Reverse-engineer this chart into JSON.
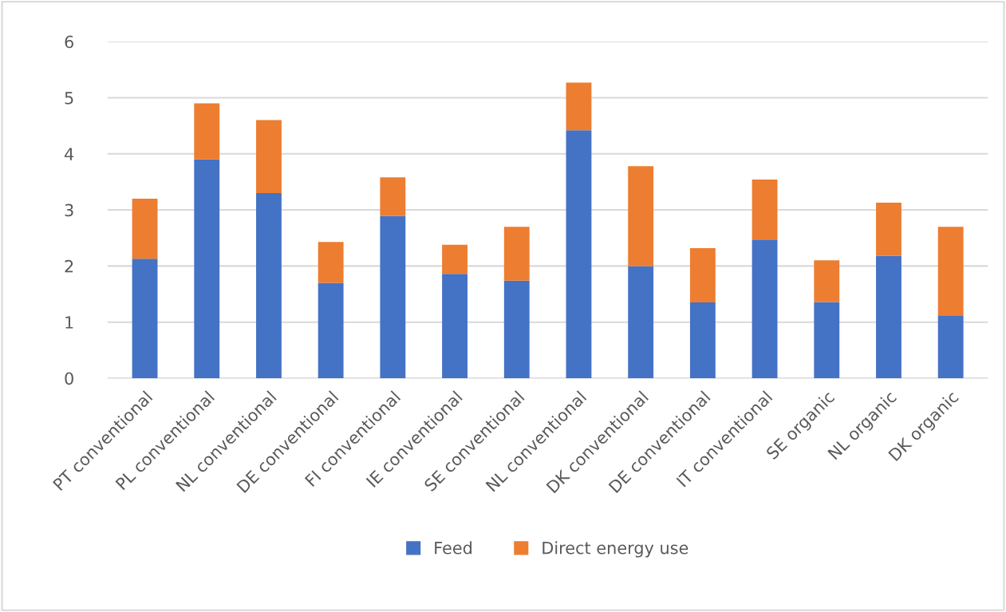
{
  "chart_data": {
    "type": "bar",
    "stacked": true,
    "categories": [
      "PT conventional",
      "PL conventional",
      "NL conventional",
      "DE conventional",
      "FI conventional",
      "IE conventional",
      "SE conventional",
      "NL conventional",
      "DK conventional",
      "DE conventional",
      "IT conventional",
      "SE organic",
      "NL organic",
      "DK organic"
    ],
    "series": [
      {
        "name": "Feed",
        "color": "#4472c4",
        "values": [
          2.13,
          3.9,
          3.3,
          1.7,
          2.89,
          1.86,
          1.74,
          4.42,
          2.0,
          1.35,
          2.47,
          1.36,
          2.18,
          1.12
        ]
      },
      {
        "name": "Direct energy use",
        "color": "#ed7d31",
        "values": [
          1.07,
          1.0,
          1.3,
          0.73,
          0.69,
          0.52,
          0.96,
          0.85,
          1.78,
          0.97,
          1.07,
          0.74,
          0.95,
          1.58
        ]
      }
    ],
    "ylim": [
      0,
      6
    ],
    "yticks": [
      0,
      1,
      2,
      3,
      4,
      5,
      6
    ],
    "grid": "y",
    "legend": "bottom"
  }
}
